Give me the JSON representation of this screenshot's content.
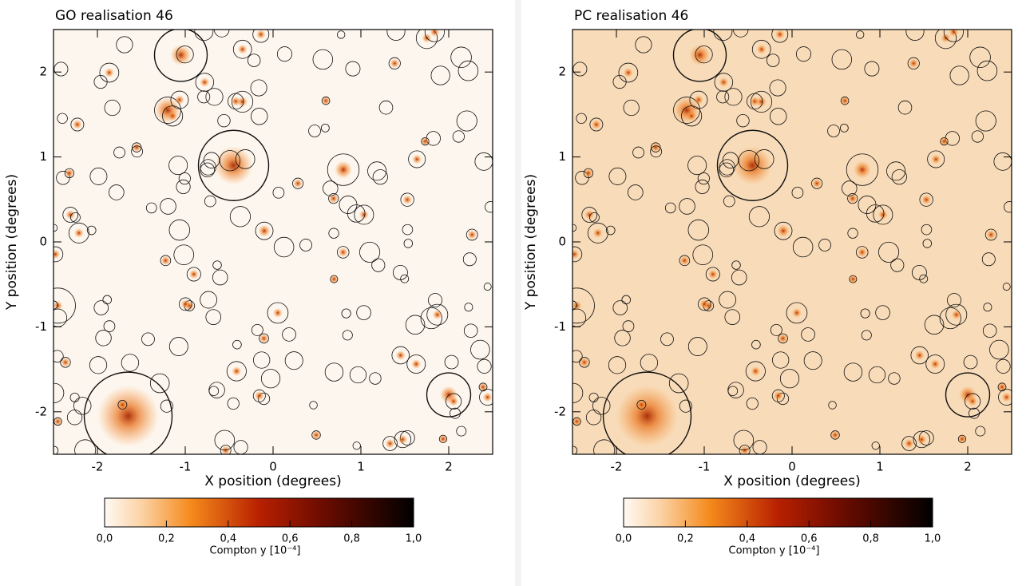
{
  "chart_data": [
    {
      "type": "image",
      "title": "GO realisation 46",
      "xlabel": "X position (degrees)",
      "ylabel": "Y position (degrees)",
      "xlim": [
        -2.5,
        2.5
      ],
      "ylim": [
        -2.5,
        2.5
      ],
      "xticks": [
        -2,
        -1,
        0,
        1,
        2
      ],
      "yticks": [
        -2,
        -1,
        0,
        1,
        2
      ],
      "background": "#fdf6ee",
      "colorbar": {
        "label": "Compton y [10⁻⁴]",
        "lim": [
          0,
          1
        ],
        "ticks": [
          {
            "value": 0,
            "label": "0,0"
          },
          {
            "value": 0.2,
            "label": "0,2"
          },
          {
            "value": 0.4,
            "label": "0,4"
          },
          {
            "value": 0.6,
            "label": "0,6"
          },
          {
            "value": 0.8,
            "label": "0,8"
          },
          {
            "value": 1,
            "label": "1,0"
          }
        ]
      }
    },
    {
      "type": "image",
      "title": "PC realisation 46",
      "xlabel": "X position (degrees)",
      "ylabel": "Y position (degrees)",
      "xlim": [
        -2.5,
        2.5
      ],
      "ylim": [
        -2.5,
        2.5
      ],
      "xticks": [
        -2,
        -1,
        0,
        1,
        2
      ],
      "yticks": [
        -2,
        -1,
        0,
        1,
        2
      ],
      "background": "#f8dbb8",
      "colorbar": {
        "label": "Compton y [10⁻⁴]",
        "lim": [
          0,
          1
        ],
        "ticks": [
          {
            "value": 0,
            "label": "0,0"
          },
          {
            "value": 0.2,
            "label": "0,2"
          },
          {
            "value": 0.4,
            "label": "0,4"
          },
          {
            "value": 0.6,
            "label": "0,6"
          },
          {
            "value": 0.8,
            "label": "0,8"
          },
          {
            "value": 1,
            "label": "1,0"
          }
        ]
      }
    }
  ]
}
